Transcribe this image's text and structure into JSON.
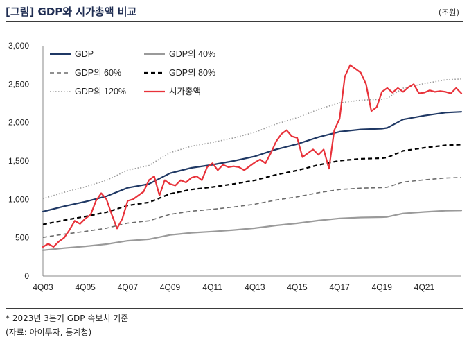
{
  "header": {
    "title": "[그림] GDP와 시가총액 비교",
    "unit": "(조원)"
  },
  "footer": {
    "note": "* 2023년 3분기 GDP 속보치 기준",
    "source": "(자료: 아이투자, 통계청)"
  },
  "chart_data": {
    "type": "line",
    "title": "[그림] GDP와 시가총액 비교",
    "ylabel": "(조원)",
    "xlabel": "",
    "ylim": [
      0,
      3000
    ],
    "yticks": [
      0,
      500,
      1000,
      1500,
      2000,
      2500,
      3000
    ],
    "ytick_labels": [
      "0",
      "500",
      "1,000",
      "1,500",
      "2,000",
      "2,500",
      "3,000"
    ],
    "xlim": [
      2003.75,
      2023.5
    ],
    "xticks": [
      2003.75,
      2005.75,
      2007.75,
      2009.75,
      2011.75,
      2013.75,
      2015.75,
      2017.75,
      2019.75,
      2021.75
    ],
    "xtick_labels": [
      "4Q03",
      "4Q05",
      "4Q07",
      "4Q09",
      "4Q11",
      "4Q13",
      "4Q15",
      "4Q17",
      "4Q19",
      "4Q21"
    ],
    "grid": false,
    "legend_position": "top-left",
    "x": [
      2003.75,
      2004.75,
      2005.75,
      2006.75,
      2007.75,
      2008.75,
      2009.75,
      2010.75,
      2011.75,
      2012.75,
      2013.75,
      2014.75,
      2015.75,
      2016.75,
      2017.75,
      2018.75,
      2019.75,
      2020.0,
      2020.75,
      2021.75,
      2022.75,
      2023.5
    ],
    "series": [
      {
        "name": "GDP",
        "color": "#1f3864",
        "style": "solid",
        "width": 2.2,
        "values": [
          840,
          910,
          970,
          1040,
          1150,
          1200,
          1340,
          1410,
          1450,
          1500,
          1560,
          1650,
          1720,
          1810,
          1880,
          1910,
          1920,
          1930,
          2040,
          2090,
          2130,
          2140
        ]
      },
      {
        "name": "GDP의 40%",
        "color": "#9a9a9a",
        "style": "solid",
        "width": 2.2,
        "values": [
          336,
          364,
          388,
          416,
          460,
          480,
          536,
          564,
          580,
          600,
          624,
          660,
          688,
          724,
          752,
          764,
          768,
          772,
          816,
          836,
          852,
          856
        ]
      },
      {
        "name": "GDP의 60%",
        "color": "#6b6b6b",
        "style": "dashed",
        "width": 1.6,
        "values": [
          504,
          546,
          582,
          624,
          690,
          720,
          804,
          846,
          870,
          900,
          936,
          990,
          1032,
          1086,
          1128,
          1146,
          1152,
          1158,
          1224,
          1254,
          1278,
          1284
        ]
      },
      {
        "name": "GDP의 80%",
        "color": "#000000",
        "style": "dashed",
        "width": 2.2,
        "values": [
          672,
          728,
          776,
          832,
          920,
          960,
          1072,
          1128,
          1160,
          1200,
          1248,
          1320,
          1376,
          1448,
          1504,
          1528,
          1536,
          1544,
          1632,
          1672,
          1704,
          1712
        ]
      },
      {
        "name": "GDP의 120%",
        "color": "#9a9a9a",
        "style": "dotted",
        "width": 1.6,
        "values": [
          1008,
          1092,
          1164,
          1248,
          1380,
          1440,
          1608,
          1692,
          1740,
          1800,
          1872,
          1980,
          2064,
          2172,
          2256,
          2292,
          2304,
          2316,
          2448,
          2508,
          2556,
          2568
        ]
      },
      {
        "name": "시가총액",
        "color": "#e8323a",
        "style": "solid",
        "width": 2.2,
        "x": [
          2003.75,
          2004.0,
          2004.25,
          2004.5,
          2004.75,
          2005.0,
          2005.25,
          2005.5,
          2005.75,
          2006.0,
          2006.25,
          2006.5,
          2006.75,
          2007.0,
          2007.25,
          2007.5,
          2007.75,
          2008.0,
          2008.25,
          2008.5,
          2008.75,
          2009.0,
          2009.25,
          2009.5,
          2009.75,
          2010.0,
          2010.25,
          2010.5,
          2010.75,
          2011.0,
          2011.25,
          2011.5,
          2011.75,
          2012.0,
          2012.25,
          2012.5,
          2012.75,
          2013.0,
          2013.25,
          2013.5,
          2013.75,
          2014.0,
          2014.25,
          2014.5,
          2014.75,
          2015.0,
          2015.25,
          2015.5,
          2015.75,
          2016.0,
          2016.25,
          2016.5,
          2016.75,
          2017.0,
          2017.25,
          2017.5,
          2017.75,
          2018.0,
          2018.25,
          2018.5,
          2018.75,
          2019.0,
          2019.25,
          2019.5,
          2019.75,
          2020.0,
          2020.25,
          2020.5,
          2020.75,
          2021.0,
          2021.25,
          2021.5,
          2021.75,
          2022.0,
          2022.25,
          2022.5,
          2022.75,
          2023.0,
          2023.25,
          2023.5
        ],
        "values": [
          380,
          420,
          380,
          450,
          500,
          600,
          720,
          680,
          750,
          800,
          980,
          1080,
          1000,
          800,
          620,
          750,
          980,
          1000,
          1050,
          1100,
          1250,
          1300,
          1050,
          1250,
          1200,
          1180,
          1250,
          1220,
          1280,
          1300,
          1250,
          1420,
          1470,
          1380,
          1450,
          1420,
          1430,
          1420,
          1380,
          1430,
          1480,
          1520,
          1470,
          1600,
          1750,
          1850,
          1900,
          1820,
          1800,
          1550,
          1600,
          1650,
          1580,
          1650,
          1400,
          1900,
          2050,
          2600,
          2750,
          2700,
          2650,
          2500,
          2150,
          2200,
          2400,
          2450,
          2390,
          2450,
          2400,
          2460,
          2500,
          2380,
          2390,
          2420,
          2400,
          2410,
          2400,
          2380,
          2450,
          2380
        ]
      }
    ]
  }
}
